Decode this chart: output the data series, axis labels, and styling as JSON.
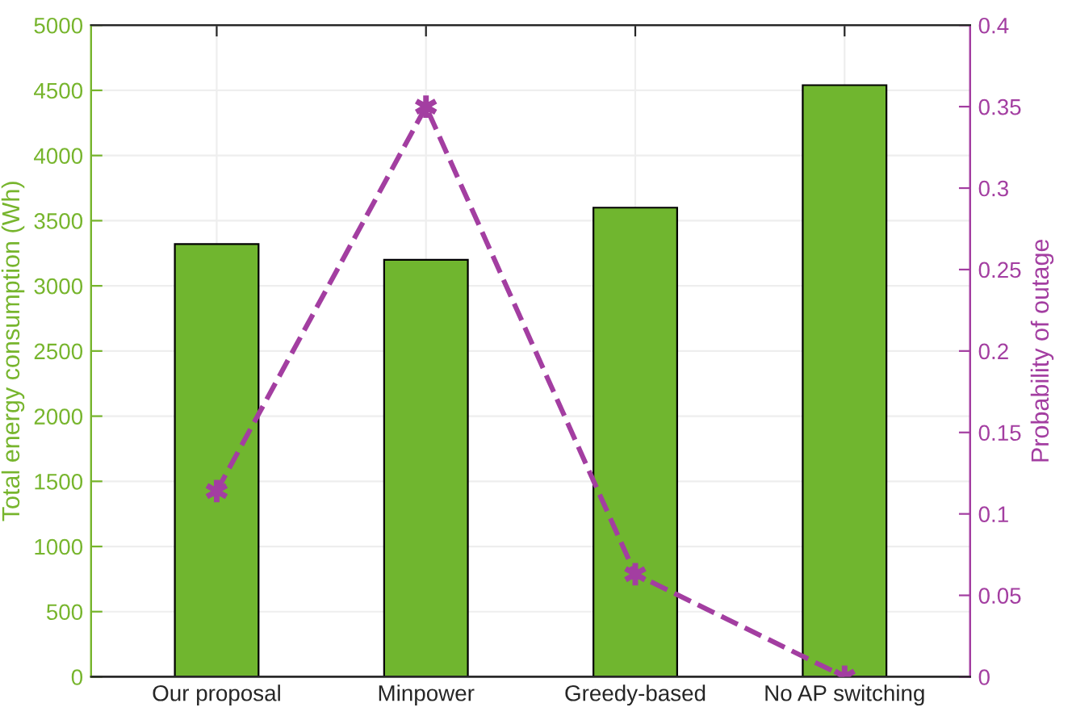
{
  "chart_data": {
    "type": "bar",
    "categories": [
      "Our proposal",
      "Minpower",
      "Greedy-based",
      "No AP switching"
    ],
    "ylabel": "Total energy consumption (Wh)",
    "y2label": "Probability of outage",
    "series": [
      {
        "color": "#70b62f",
        "values": [
          3320,
          3200,
          3600,
          4540
        ]
      },
      {
        "type": "line",
        "axis": "y2",
        "color": "#a33ea1",
        "values": [
          0.114,
          0.35,
          0.063,
          0.0
        ],
        "marker": "cross",
        "line_style": "dashed"
      }
    ],
    "ylim": [
      0,
      5000
    ],
    "yticks": [
      0,
      500,
      1000,
      1500,
      2000,
      2500,
      3000,
      3500,
      4000,
      4500,
      5000
    ],
    "y2lim": [
      0,
      0.4
    ],
    "y2ticks": [
      0,
      0.05,
      0.1,
      0.15,
      0.2,
      0.25,
      0.3,
      0.35,
      0.4
    ],
    "grid": true
  }
}
